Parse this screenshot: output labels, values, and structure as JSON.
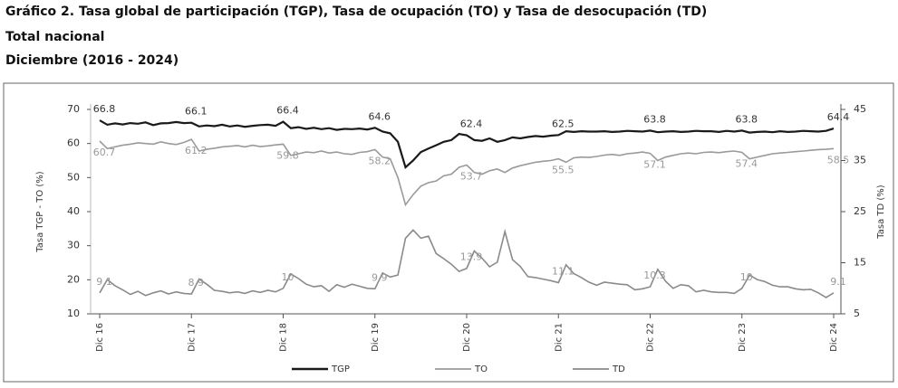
{
  "chart_data": {
    "type": "line",
    "title": "Gráfico 2. Tasa global de participación (TGP), Tasa de ocupación (TO) y Tasa de desocupación (TD)",
    "subtitle": "Total nacional",
    "period": "Diciembre (2016 - 2024)",
    "y_label": "Tasa TGP - TO (%)",
    "y2_label": "Tasa TD (%)",
    "categories": [
      "Dic 16",
      null,
      null,
      null,
      null,
      null,
      null,
      null,
      null,
      null,
      null,
      null,
      "Dic 17",
      null,
      null,
      null,
      null,
      null,
      null,
      null,
      null,
      null,
      null,
      null,
      "Dic 18",
      null,
      null,
      null,
      null,
      null,
      null,
      null,
      null,
      null,
      null,
      null,
      "Dic 19",
      null,
      null,
      null,
      null,
      null,
      null,
      null,
      null,
      null,
      null,
      null,
      "Dic 20",
      null,
      null,
      null,
      null,
      null,
      null,
      null,
      null,
      null,
      null,
      null,
      "Dic 21",
      null,
      null,
      null,
      null,
      null,
      null,
      null,
      null,
      null,
      null,
      null,
      "Dic 22",
      null,
      null,
      null,
      null,
      null,
      null,
      null,
      null,
      null,
      null,
      null,
      "Dic 23",
      null,
      null,
      null,
      null,
      null,
      null,
      null,
      null,
      null,
      null,
      null,
      "Dic 24"
    ],
    "series": [
      {
        "name": "TGP",
        "color": "#1a1a1a",
        "values": [
          66.8,
          65.5,
          65.9,
          65.6,
          66.0,
          65.8,
          66.2,
          65.4,
          65.9,
          66.0,
          66.3,
          66.0,
          66.1,
          65.0,
          65.3,
          65.1,
          65.5,
          65.0,
          65.3,
          64.9,
          65.2,
          65.4,
          65.5,
          65.2,
          66.4,
          64.5,
          64.8,
          64.3,
          64.6,
          64.2,
          64.5,
          64.0,
          64.3,
          64.2,
          64.4,
          64.1,
          64.6,
          63.5,
          63.0,
          60.5,
          53.0,
          55.0,
          57.5,
          58.5,
          59.5,
          60.5,
          61.0,
          62.8,
          62.4,
          61.0,
          60.8,
          61.5,
          60.5,
          61.0,
          61.8,
          61.5,
          61.9,
          62.2,
          62.0,
          62.3,
          62.5,
          63.6,
          63.4,
          63.6,
          63.5,
          63.5,
          63.6,
          63.4,
          63.5,
          63.7,
          63.6,
          63.5,
          63.8,
          63.3,
          63.5,
          63.6,
          63.4,
          63.5,
          63.7,
          63.6,
          63.6,
          63.4,
          63.7,
          63.5,
          63.8,
          63.2,
          63.4,
          63.5,
          63.3,
          63.6,
          63.4,
          63.5,
          63.7,
          63.6,
          63.5,
          63.7,
          64.4
        ]
      },
      {
        "name": "TO",
        "color": "#9a9a9a",
        "values": [
          60.7,
          58.5,
          59.0,
          59.5,
          59.8,
          60.2,
          60.0,
          59.8,
          60.5,
          60.0,
          59.7,
          60.3,
          61.2,
          57.8,
          58.3,
          58.6,
          59.0,
          59.2,
          59.4,
          59.0,
          59.5,
          59.1,
          59.3,
          59.6,
          59.8,
          56.5,
          57.0,
          57.5,
          57.3,
          57.8,
          57.2,
          57.5,
          57.0,
          56.8,
          57.4,
          57.6,
          58.2,
          56.0,
          55.5,
          50.0,
          42.0,
          45.0,
          47.5,
          48.5,
          49.0,
          50.5,
          51.0,
          53.0,
          53.7,
          51.5,
          51.0,
          52.0,
          52.5,
          51.5,
          52.8,
          53.5,
          54.0,
          54.5,
          54.8,
          55.0,
          55.5,
          54.5,
          55.8,
          56.0,
          55.9,
          56.2,
          56.6,
          56.8,
          56.5,
          57.0,
          57.2,
          57.5,
          57.1,
          55.0,
          56.0,
          56.5,
          57.0,
          57.2,
          57.0,
          57.4,
          57.5,
          57.3,
          57.6,
          57.8,
          57.4,
          55.5,
          56.0,
          56.5,
          57.0,
          57.2,
          57.4,
          57.6,
          57.8,
          58.0,
          58.2,
          58.3,
          58.5
        ]
      },
      {
        "name": "TD",
        "color": "#8a8a8a",
        "axis": "y2",
        "values": [
          9.1,
          11.7,
          10.5,
          9.7,
          8.8,
          9.4,
          8.6,
          9.1,
          9.5,
          8.9,
          9.3,
          9.0,
          8.9,
          11.8,
          10.8,
          9.6,
          9.4,
          9.1,
          9.3,
          9.0,
          9.5,
          9.2,
          9.6,
          9.3,
          10.0,
          12.8,
          11.9,
          10.8,
          10.3,
          10.5,
          9.4,
          10.7,
          10.2,
          10.8,
          10.4,
          10.0,
          9.9,
          13.0,
          12.2,
          12.6,
          19.8,
          21.4,
          19.8,
          20.2,
          16.8,
          15.8,
          14.7,
          13.3,
          13.9,
          17.3,
          15.9,
          14.2,
          15.1,
          21.1,
          15.6,
          14.3,
          12.3,
          12.1,
          11.8,
          11.5,
          11.1,
          14.6,
          12.9,
          12.1,
          11.2,
          10.6,
          11.2,
          11.0,
          10.8,
          10.7,
          9.7,
          9.9,
          10.3,
          13.7,
          11.4,
          10.0,
          10.7,
          10.5,
          9.3,
          9.6,
          9.3,
          9.2,
          9.2,
          9.0,
          10.0,
          12.6,
          11.7,
          11.3,
          10.6,
          10.3,
          10.3,
          9.9,
          9.7,
          9.8,
          9.1,
          8.2,
          9.1
        ]
      }
    ],
    "ylim": [
      10,
      70
    ],
    "yticks": [
      10,
      20,
      30,
      40,
      50,
      60,
      70
    ],
    "y2lim": [
      5,
      45
    ],
    "y2ticks": [
      5,
      15,
      25,
      35,
      45
    ],
    "legend": "bottom"
  }
}
